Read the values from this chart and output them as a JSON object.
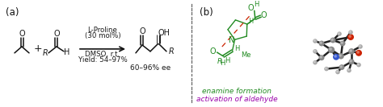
{
  "panel_a_label": "(a)",
  "panel_b_label": "(b)",
  "arrow_label_line1": "L-Proline",
  "arrow_label_line2": "(30 mol%)",
  "arrow_label_line3": "DMSO, r.t.",
  "arrow_label_line4": "Yield: 54–97%",
  "product_ee": "60–96% ee",
  "enamine_text": "enamine formation",
  "aldehyde_text": "activation of aldehyde",
  "enamine_color": "#228B22",
  "aldehyde_color": "#9900AA",
  "divider_color": "#666666",
  "text_color": "#1a1a1a",
  "bg_color": "#ffffff",
  "bond_color": "#111111",
  "bond_lw": 1.1,
  "fig_width": 4.74,
  "fig_height": 1.33,
  "dpi": 100
}
